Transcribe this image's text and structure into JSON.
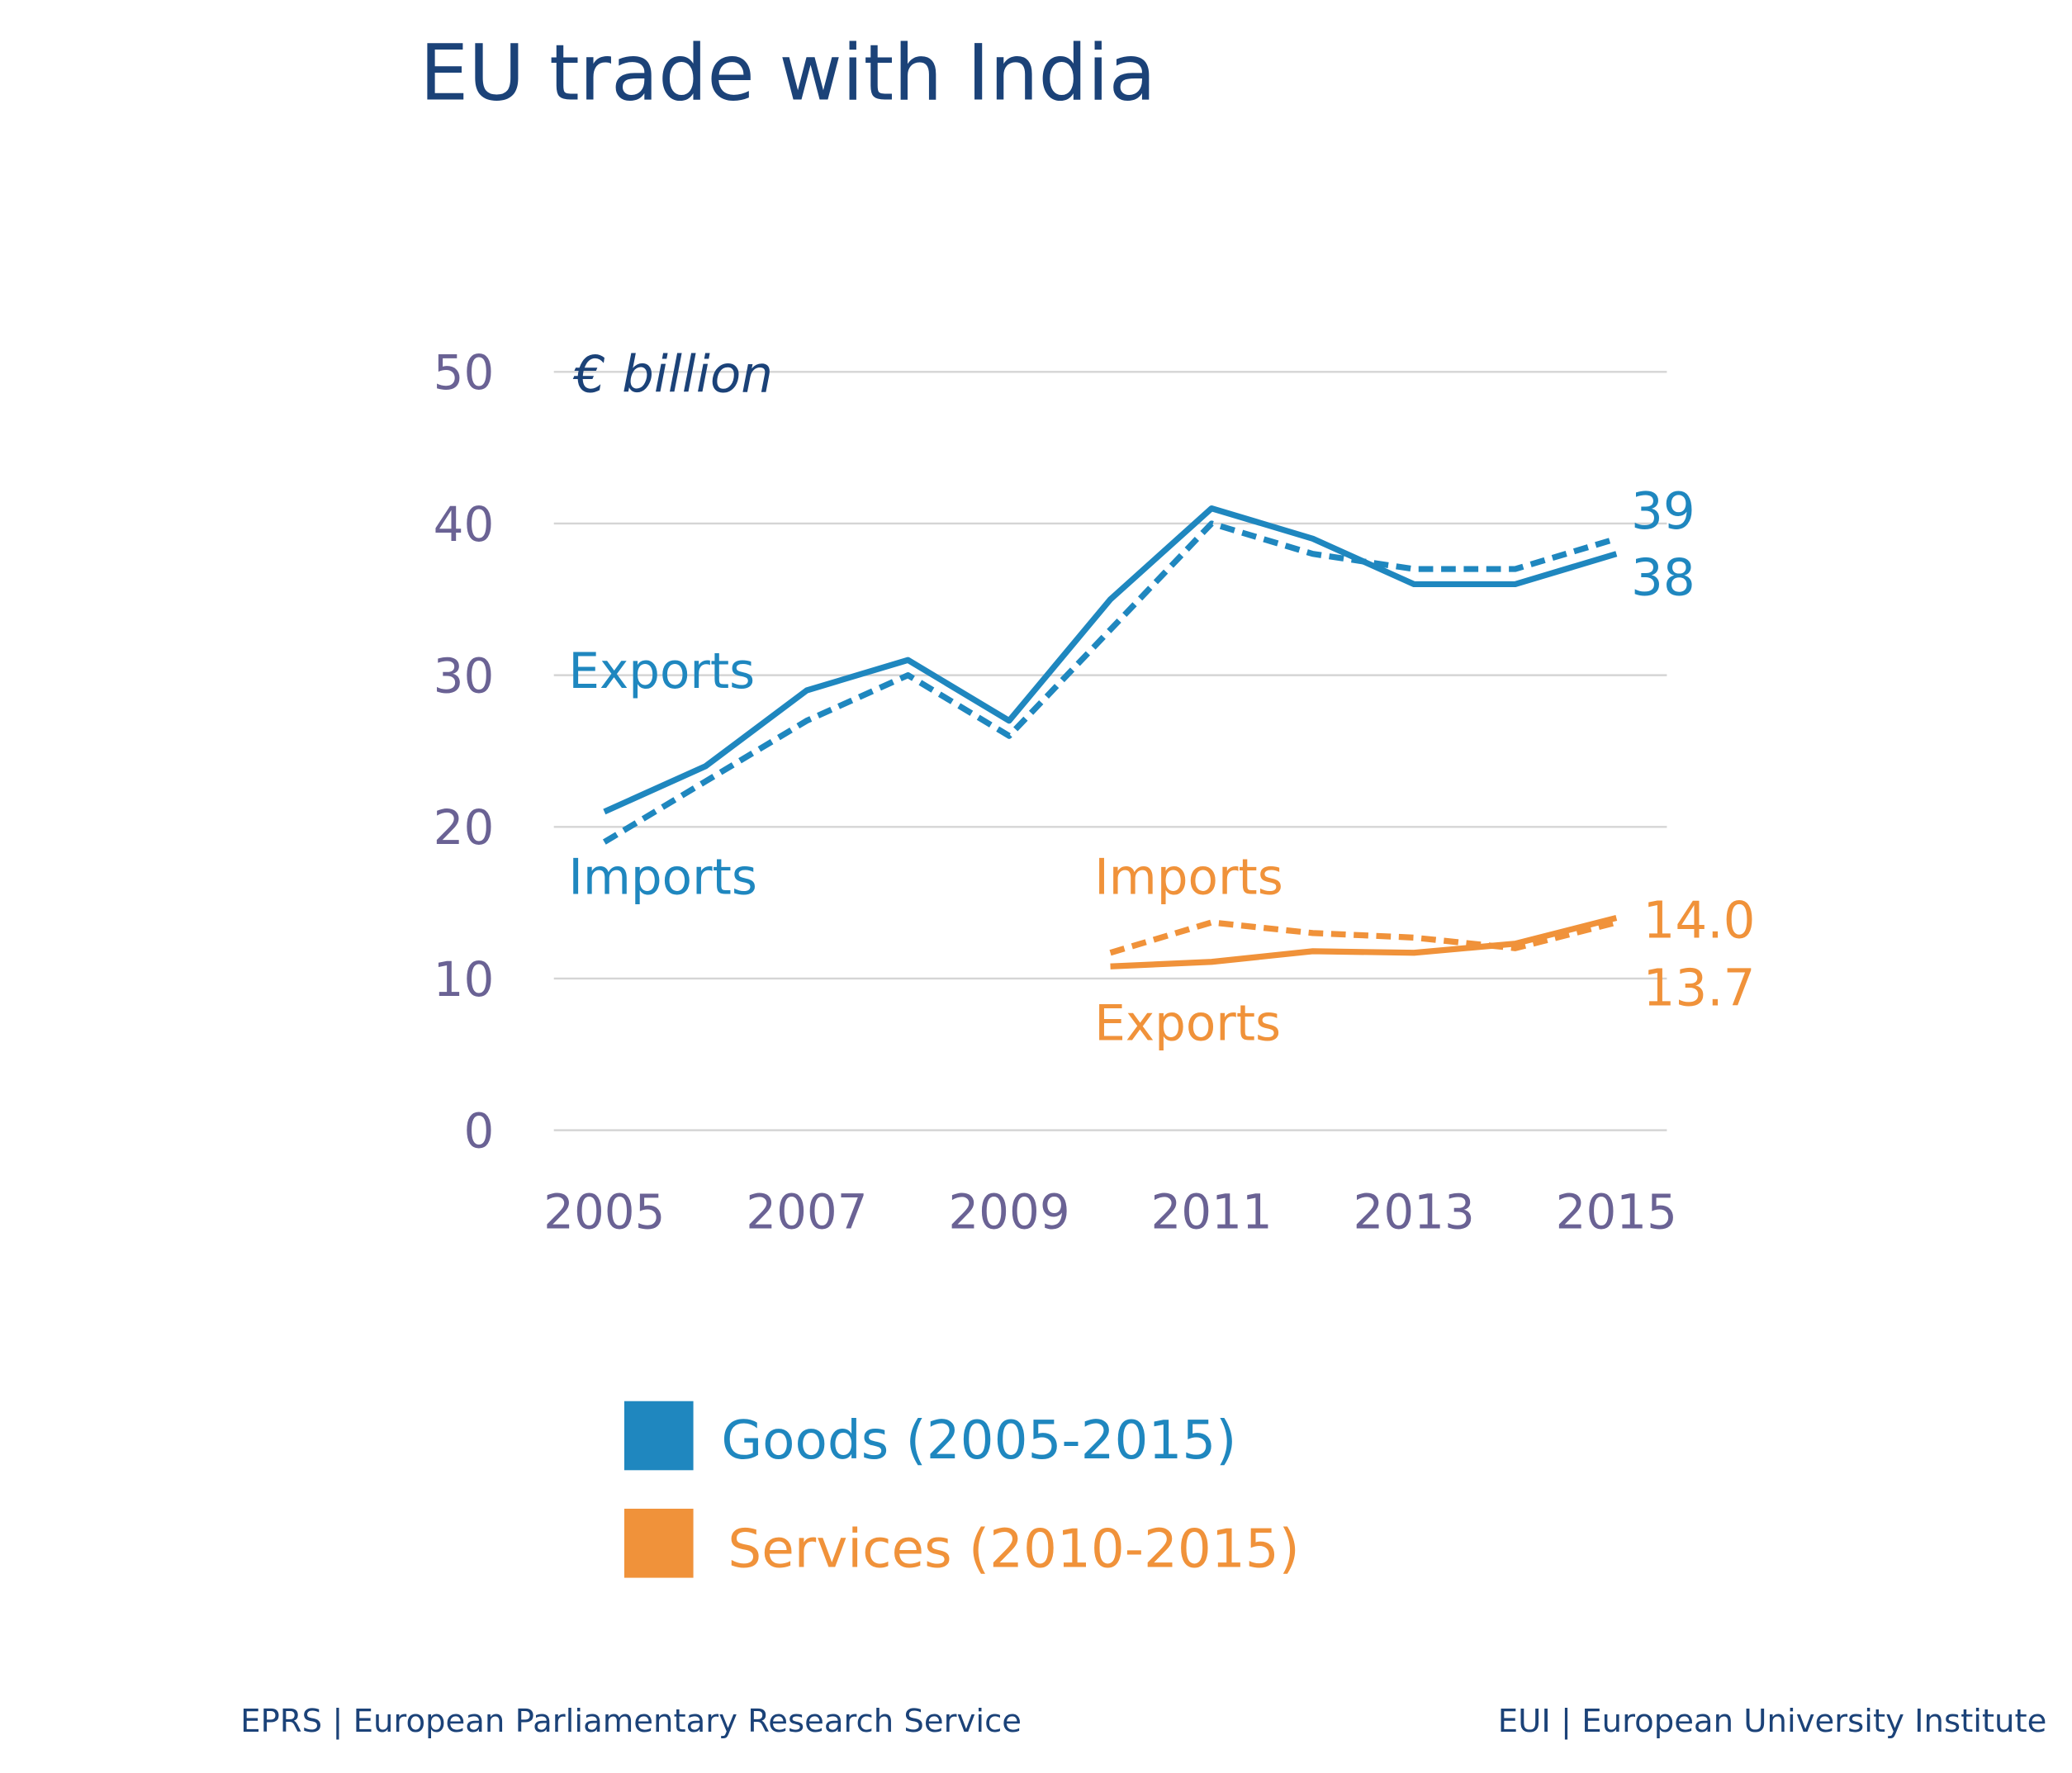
{
  "chart_data": {
    "type": "line",
    "title": "EU trade with India",
    "unit_label": "€ billion",
    "x": [
      2005,
      2006,
      2007,
      2008,
      2009,
      2010,
      2011,
      2012,
      2013,
      2014,
      2015
    ],
    "xticks": [
      "2005",
      "2007",
      "2009",
      "2011",
      "2013",
      "2015"
    ],
    "yticks": [
      "0",
      "10",
      "20",
      "30",
      "40",
      "50"
    ],
    "ylim": [
      0,
      50
    ],
    "grid": true,
    "series": [
      {
        "group": "goods",
        "name": "Exports",
        "style": "solid",
        "color": "#1f87bf",
        "x": [
          2005,
          2006,
          2007,
          2008,
          2009,
          2010,
          2011,
          2012,
          2013,
          2014,
          2015
        ],
        "values": [
          21,
          24,
          29,
          31,
          27,
          35,
          41,
          39,
          36,
          36,
          38
        ]
      },
      {
        "group": "goods",
        "name": "Imports",
        "style": "dashed",
        "color": "#1f87bf",
        "x": [
          2005,
          2006,
          2007,
          2008,
          2009,
          2010,
          2011,
          2012,
          2013,
          2014,
          2015
        ],
        "values": [
          19,
          23,
          27,
          30,
          26,
          33,
          40,
          38,
          37,
          37,
          39
        ]
      },
      {
        "group": "services",
        "name": "Exports",
        "style": "solid",
        "color": "#f0923a",
        "x": [
          2010,
          2011,
          2012,
          2013,
          2014,
          2015
        ],
        "values": [
          10.8,
          11.1,
          11.8,
          11.7,
          12.3,
          14.0
        ]
      },
      {
        "group": "services",
        "name": "Imports",
        "style": "dashed",
        "color": "#f0923a",
        "x": [
          2010,
          2011,
          2012,
          2013,
          2014,
          2015
        ],
        "values": [
          11.7,
          13.7,
          13.0,
          12.7,
          12.0,
          13.7
        ]
      }
    ],
    "end_labels": {
      "goods_top": "39",
      "goods_bottom": "38",
      "services_top": "14.0",
      "services_bottom": "13.7"
    },
    "legend": [
      {
        "label": "Goods (2005-2015)",
        "color": "#1f87bf"
      },
      {
        "label": "Services (2010-2015)",
        "color": "#f0923a"
      }
    ],
    "legend_placement": "bottom"
  },
  "footer": {
    "left": "EPRS | European Parliamentary Research Service",
    "right": "EUI | European University Institute"
  }
}
